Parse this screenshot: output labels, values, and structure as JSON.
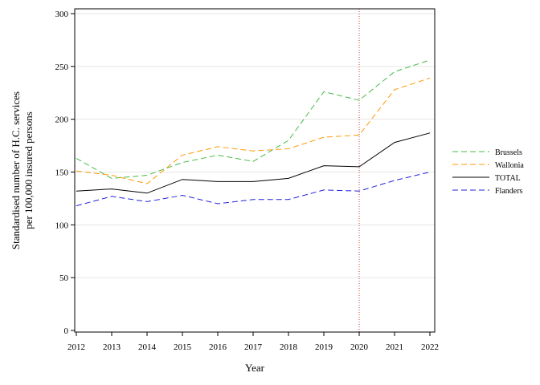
{
  "chart_data": {
    "type": "line",
    "title": "",
    "xlabel": "Year",
    "ylabel_lines": [
      "Standardised number of H.C. services",
      "per 100,000 insured persons"
    ],
    "x": [
      2012,
      2013,
      2014,
      2015,
      2016,
      2017,
      2018,
      2019,
      2020,
      2021,
      2022
    ],
    "xlim": [
      2012,
      2022
    ],
    "ylim": [
      0,
      300
    ],
    "yticks": [
      0,
      50,
      100,
      150,
      200,
      250,
      300
    ],
    "grid": "horizontal, light",
    "legend_position": "right",
    "reference_line": {
      "x": 2020,
      "color": "#cc3333",
      "style": "dotted"
    },
    "series": [
      {
        "name": "Brussels",
        "color": "#44bb44",
        "style": "dashed",
        "values": [
          163,
          144,
          147,
          159,
          166,
          160,
          180,
          226,
          218,
          245,
          256
        ]
      },
      {
        "name": "Wallonia",
        "color": "#ff9900",
        "style": "dashed",
        "values": [
          151,
          147,
          139,
          166,
          174,
          170,
          172,
          183,
          185,
          228,
          239
        ]
      },
      {
        "name": "TOTAL",
        "color": "#000000",
        "style": "solid",
        "values": [
          132,
          134,
          130,
          143,
          141,
          141,
          144,
          156,
          155,
          178,
          187
        ]
      },
      {
        "name": "Flanders",
        "color": "#2222dd",
        "style": "dashed",
        "values": [
          118,
          127,
          122,
          128,
          120,
          124,
          124,
          133,
          132,
          142,
          150
        ]
      }
    ]
  }
}
